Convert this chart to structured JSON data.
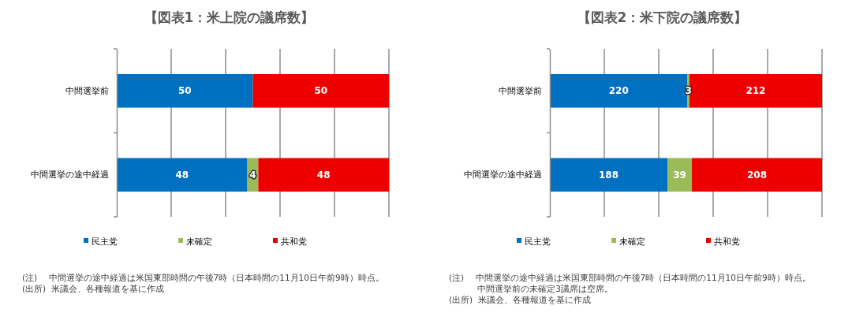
{
  "chart_data": [
    {
      "type": "bar",
      "title": "【図表1：米上院の議席数】",
      "orientation": "horizontal",
      "stacked": true,
      "data_labels": true,
      "grid": "x",
      "legend": "bottom",
      "tick_labels": "y",
      "categories": [
        "中間選挙前",
        "中間選挙の途中経過"
      ],
      "xlim": [
        0,
        100
      ],
      "xticks": [
        {
          "value": 0,
          "label": null
        },
        {
          "value": 20,
          "label": null
        },
        {
          "value": 40,
          "label": null
        },
        {
          "value": 60,
          "label": null
        },
        {
          "value": 80,
          "label": null
        },
        {
          "value": 100,
          "label": null
        }
      ],
      "series": [
        {
          "name": "民主党",
          "color": "#0070c0",
          "values": [
            50,
            48
          ]
        },
        {
          "name": "未確定",
          "color": "#9bbb59",
          "values": [
            null,
            4
          ]
        },
        {
          "name": "共和党",
          "color": "#ee0000",
          "values": [
            50,
            48
          ]
        }
      ],
      "annotations": [
        "(注)　 中間選挙の途中経過は米国東部時間の午後7時（日本時間の11月10日午前9時）時点。",
        "(出所)  米議会、各種報道を基に作成"
      ]
    },
    {
      "type": "bar",
      "title": "【図表2：米下院の議席数】",
      "orientation": "horizontal",
      "stacked": true,
      "data_labels": true,
      "grid": "x",
      "legend": "bottom",
      "tick_labels": "y",
      "categories": [
        "中間選挙前",
        "中間選挙の途中経過"
      ],
      "xlim": [
        0,
        435
      ],
      "xticks": [
        {
          "value": 0,
          "label": null
        },
        {
          "value": 87,
          "label": null
        },
        {
          "value": 174,
          "label": null
        },
        {
          "value": 261,
          "label": null
        },
        {
          "value": 348,
          "label": null
        },
        {
          "value": 435,
          "label": null
        }
      ],
      "series": [
        {
          "name": "民主党",
          "color": "#0070c0",
          "values": [
            220,
            188
          ]
        },
        {
          "name": "未確定",
          "color": "#9bbb59",
          "values": [
            3,
            39
          ]
        },
        {
          "name": "共和党",
          "color": "#ee0000",
          "values": [
            212,
            208
          ]
        }
      ],
      "annotations": [
        "(注)　 中間選挙の途中経過は米国東部時間の午後7時（日本時間の11月10日午前9時）時点。",
        "　　　 中間選挙前の未確定3議席は空席。",
        "(出所)  米議会、各種報道を基に作成"
      ]
    }
  ]
}
